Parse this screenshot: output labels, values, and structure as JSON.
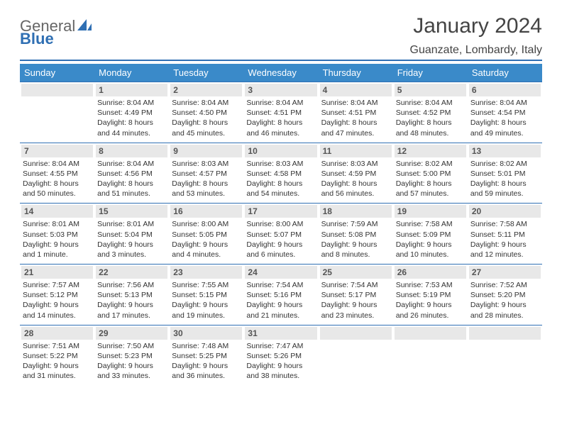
{
  "brand": {
    "part1": "General",
    "part2": "Blue"
  },
  "title": "January 2024",
  "location": "Guanzate, Lombardy, Italy",
  "colors": {
    "header_bg": "#3a8ac9",
    "header_text": "#ffffff",
    "rule": "#2f6fb3",
    "daynum_bg": "#e8e8e8",
    "text": "#333333"
  },
  "weekdays": [
    "Sunday",
    "Monday",
    "Tuesday",
    "Wednesday",
    "Thursday",
    "Friday",
    "Saturday"
  ],
  "first_weekday_index": 1,
  "days": [
    {
      "n": 1,
      "sunrise": "8:04 AM",
      "sunset": "4:49 PM",
      "daylight": "8 hours and 44 minutes."
    },
    {
      "n": 2,
      "sunrise": "8:04 AM",
      "sunset": "4:50 PM",
      "daylight": "8 hours and 45 minutes."
    },
    {
      "n": 3,
      "sunrise": "8:04 AM",
      "sunset": "4:51 PM",
      "daylight": "8 hours and 46 minutes."
    },
    {
      "n": 4,
      "sunrise": "8:04 AM",
      "sunset": "4:51 PM",
      "daylight": "8 hours and 47 minutes."
    },
    {
      "n": 5,
      "sunrise": "8:04 AM",
      "sunset": "4:52 PM",
      "daylight": "8 hours and 48 minutes."
    },
    {
      "n": 6,
      "sunrise": "8:04 AM",
      "sunset": "4:54 PM",
      "daylight": "8 hours and 49 minutes."
    },
    {
      "n": 7,
      "sunrise": "8:04 AM",
      "sunset": "4:55 PM",
      "daylight": "8 hours and 50 minutes."
    },
    {
      "n": 8,
      "sunrise": "8:04 AM",
      "sunset": "4:56 PM",
      "daylight": "8 hours and 51 minutes."
    },
    {
      "n": 9,
      "sunrise": "8:03 AM",
      "sunset": "4:57 PM",
      "daylight": "8 hours and 53 minutes."
    },
    {
      "n": 10,
      "sunrise": "8:03 AM",
      "sunset": "4:58 PM",
      "daylight": "8 hours and 54 minutes."
    },
    {
      "n": 11,
      "sunrise": "8:03 AM",
      "sunset": "4:59 PM",
      "daylight": "8 hours and 56 minutes."
    },
    {
      "n": 12,
      "sunrise": "8:02 AM",
      "sunset": "5:00 PM",
      "daylight": "8 hours and 57 minutes."
    },
    {
      "n": 13,
      "sunrise": "8:02 AM",
      "sunset": "5:01 PM",
      "daylight": "8 hours and 59 minutes."
    },
    {
      "n": 14,
      "sunrise": "8:01 AM",
      "sunset": "5:03 PM",
      "daylight": "9 hours and 1 minute."
    },
    {
      "n": 15,
      "sunrise": "8:01 AM",
      "sunset": "5:04 PM",
      "daylight": "9 hours and 3 minutes."
    },
    {
      "n": 16,
      "sunrise": "8:00 AM",
      "sunset": "5:05 PM",
      "daylight": "9 hours and 4 minutes."
    },
    {
      "n": 17,
      "sunrise": "8:00 AM",
      "sunset": "5:07 PM",
      "daylight": "9 hours and 6 minutes."
    },
    {
      "n": 18,
      "sunrise": "7:59 AM",
      "sunset": "5:08 PM",
      "daylight": "9 hours and 8 minutes."
    },
    {
      "n": 19,
      "sunrise": "7:58 AM",
      "sunset": "5:09 PM",
      "daylight": "9 hours and 10 minutes."
    },
    {
      "n": 20,
      "sunrise": "7:58 AM",
      "sunset": "5:11 PM",
      "daylight": "9 hours and 12 minutes."
    },
    {
      "n": 21,
      "sunrise": "7:57 AM",
      "sunset": "5:12 PM",
      "daylight": "9 hours and 14 minutes."
    },
    {
      "n": 22,
      "sunrise": "7:56 AM",
      "sunset": "5:13 PM",
      "daylight": "9 hours and 17 minutes."
    },
    {
      "n": 23,
      "sunrise": "7:55 AM",
      "sunset": "5:15 PM",
      "daylight": "9 hours and 19 minutes."
    },
    {
      "n": 24,
      "sunrise": "7:54 AM",
      "sunset": "5:16 PM",
      "daylight": "9 hours and 21 minutes."
    },
    {
      "n": 25,
      "sunrise": "7:54 AM",
      "sunset": "5:17 PM",
      "daylight": "9 hours and 23 minutes."
    },
    {
      "n": 26,
      "sunrise": "7:53 AM",
      "sunset": "5:19 PM",
      "daylight": "9 hours and 26 minutes."
    },
    {
      "n": 27,
      "sunrise": "7:52 AM",
      "sunset": "5:20 PM",
      "daylight": "9 hours and 28 minutes."
    },
    {
      "n": 28,
      "sunrise": "7:51 AM",
      "sunset": "5:22 PM",
      "daylight": "9 hours and 31 minutes."
    },
    {
      "n": 29,
      "sunrise": "7:50 AM",
      "sunset": "5:23 PM",
      "daylight": "9 hours and 33 minutes."
    },
    {
      "n": 30,
      "sunrise": "7:48 AM",
      "sunset": "5:25 PM",
      "daylight": "9 hours and 36 minutes."
    },
    {
      "n": 31,
      "sunrise": "7:47 AM",
      "sunset": "5:26 PM",
      "daylight": "9 hours and 38 minutes."
    }
  ],
  "labels": {
    "sunrise": "Sunrise:",
    "sunset": "Sunset:",
    "daylight": "Daylight:"
  }
}
